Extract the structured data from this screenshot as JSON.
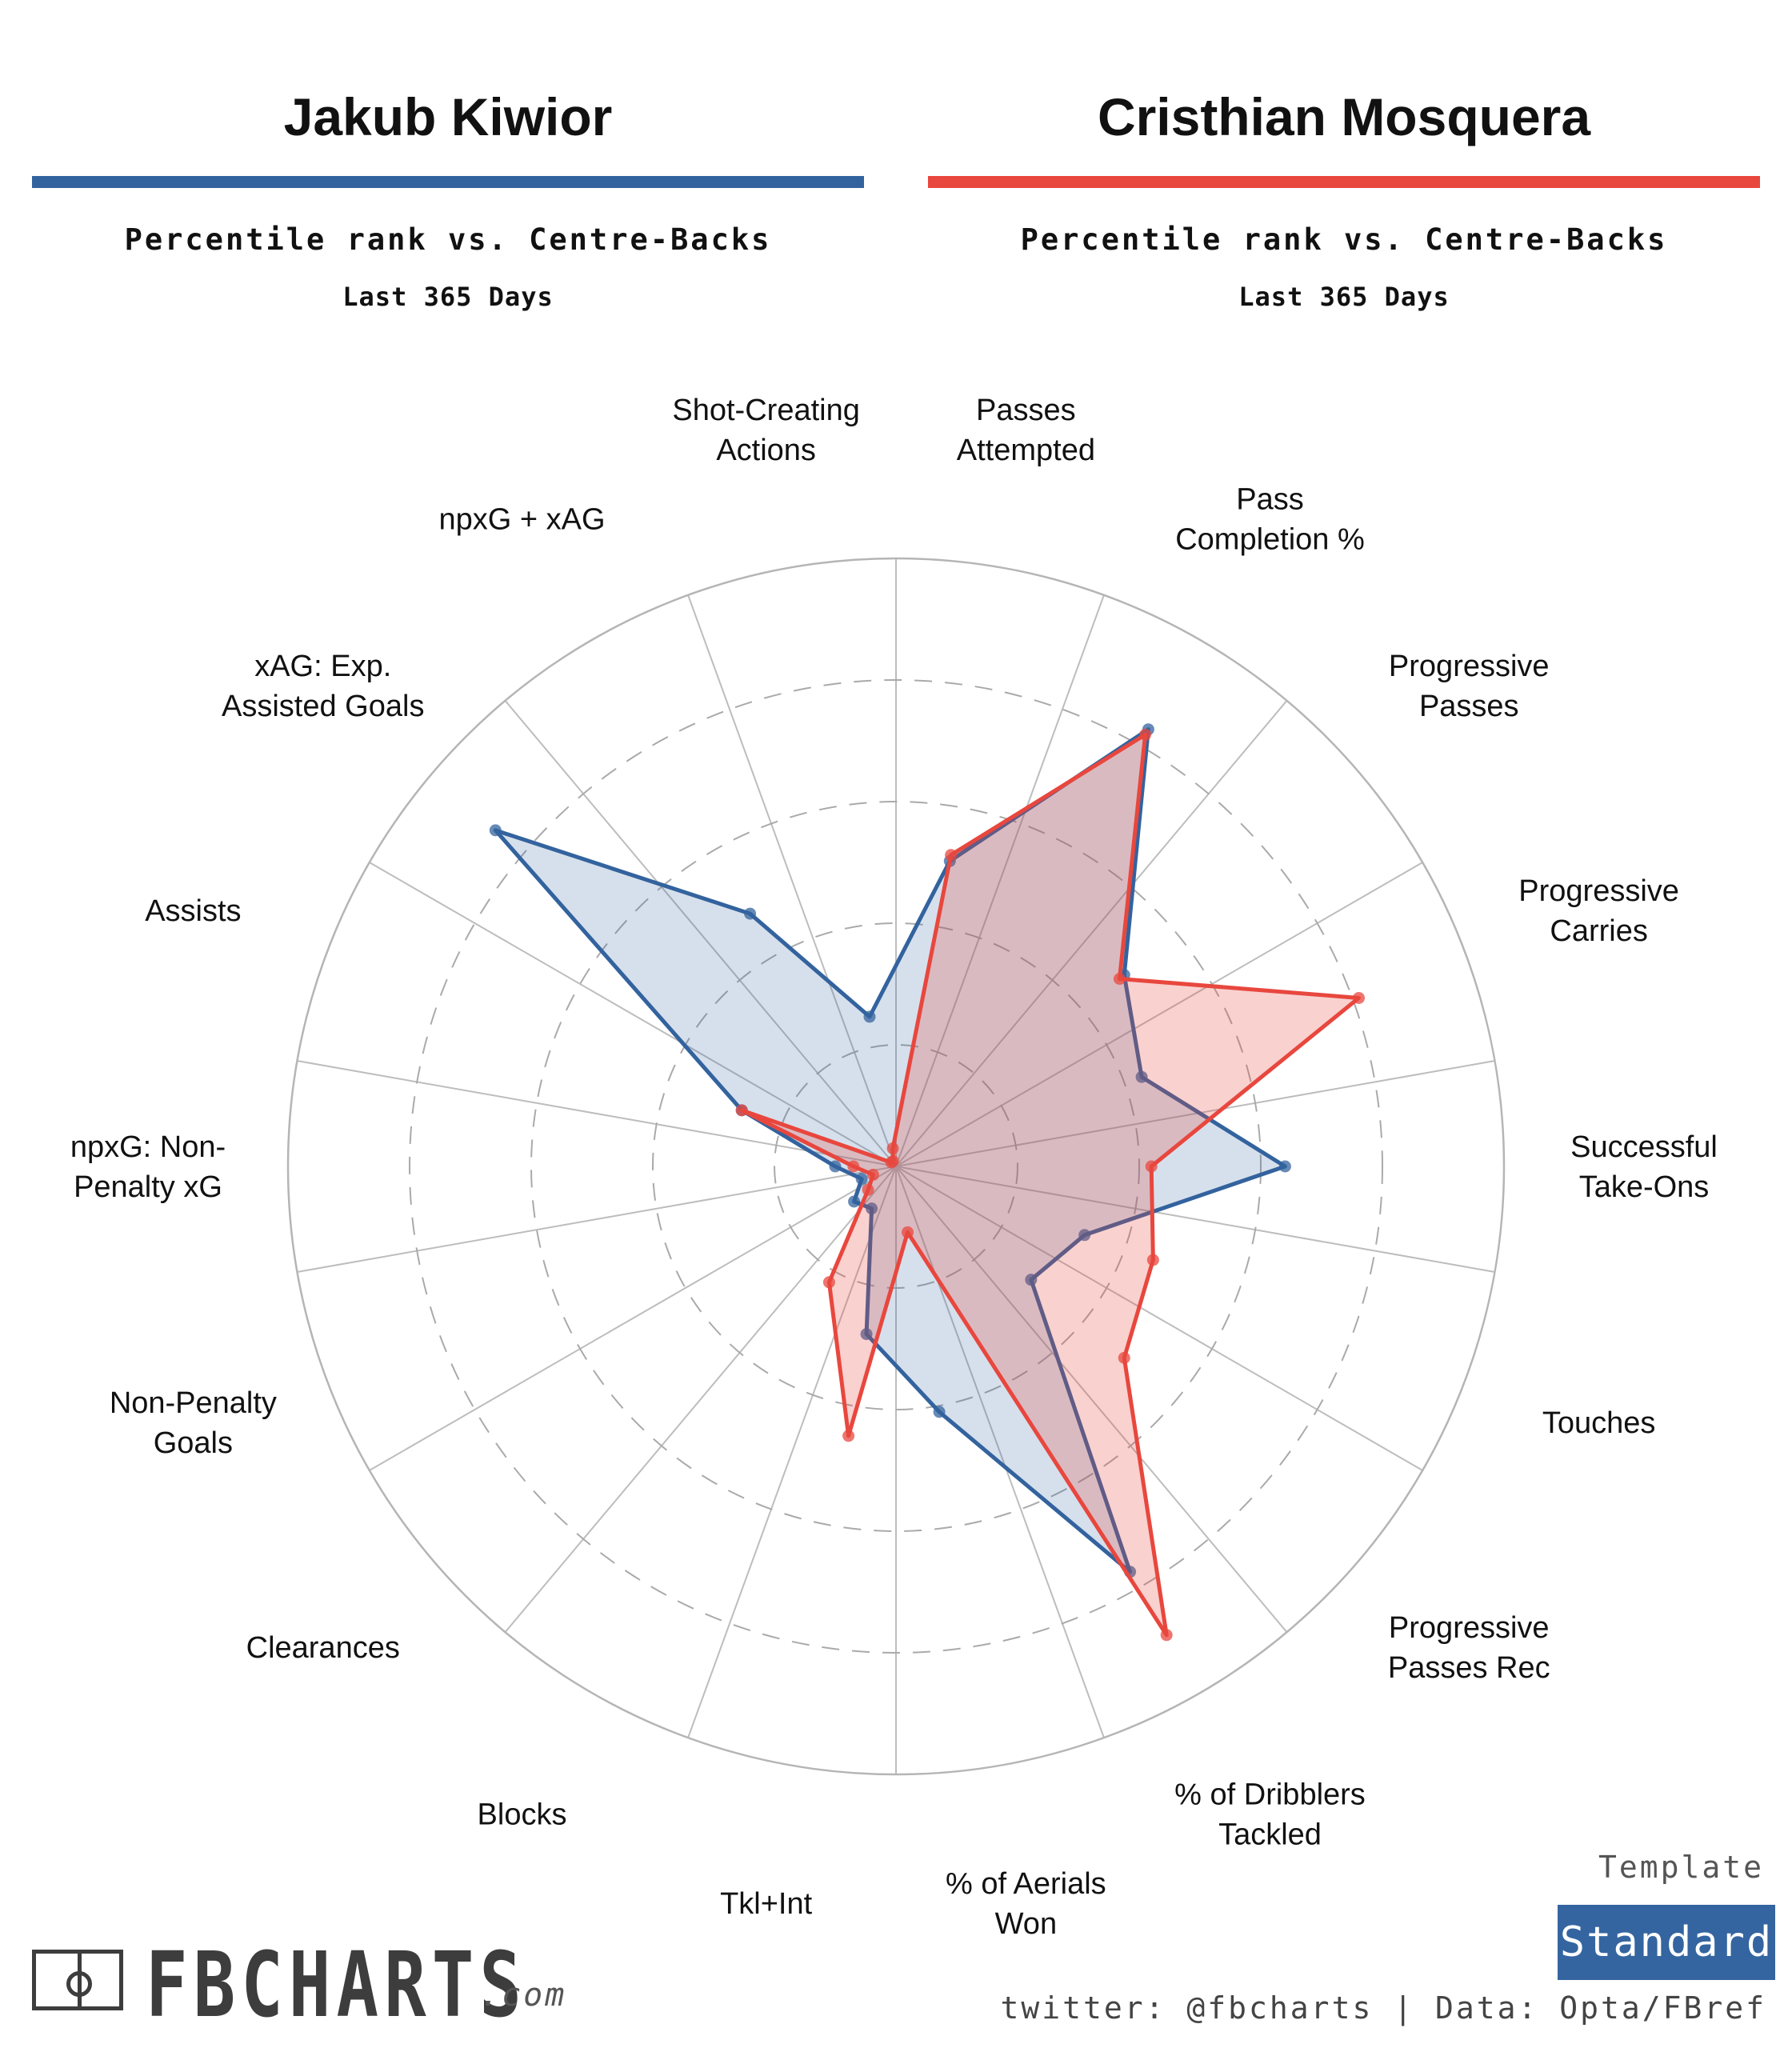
{
  "players": [
    {
      "name": "Jakub Kiwior",
      "color": "#33639e",
      "subtitle": "Percentile rank vs. Centre-Backs",
      "period": "Last 365 Days"
    },
    {
      "name": "Cristhian Mosquera",
      "color": "#e8473e",
      "subtitle": "Percentile rank vs. Centre-Backs",
      "period": "Last 365 Days"
    }
  ],
  "chart_data": {
    "type": "radar",
    "rlim": [
      0,
      100
    ],
    "rings": [
      20,
      40,
      60,
      80,
      100
    ],
    "start_angle_deg": 90,
    "direction": "clockwise",
    "axes": [
      {
        "key": "passes_attempted",
        "label": "Passes\nAttempted"
      },
      {
        "key": "pass_completion",
        "label": "Pass\nCompletion %"
      },
      {
        "key": "progressive_passes",
        "label": "Progressive\nPasses"
      },
      {
        "key": "progressive_carries",
        "label": "Progressive\nCarries"
      },
      {
        "key": "successful_take_ons",
        "label": "Successful\nTake-Ons"
      },
      {
        "key": "touches",
        "label": "Touches"
      },
      {
        "key": "progressive_passes_rec",
        "label": "Progressive\nPasses Rec"
      },
      {
        "key": "dribblers_tackled",
        "label": "% of Dribblers\nTackled"
      },
      {
        "key": "aerials_won",
        "label": "% of Aerials\nWon"
      },
      {
        "key": "tkl_int",
        "label": "Tkl+Int"
      },
      {
        "key": "blocks",
        "label": "Blocks"
      },
      {
        "key": "clearances",
        "label": "Clearances"
      },
      {
        "key": "non_penalty_goals",
        "label": "Non-Penalty\nGoals"
      },
      {
        "key": "npxg",
        "label": "npxG: Non-\nPenalty xG"
      },
      {
        "key": "assists",
        "label": "Assists"
      },
      {
        "key": "xag",
        "label": "xAG: Exp.\nAssisted Goals"
      },
      {
        "key": "npxg_xag",
        "label": "npxG + xAG"
      },
      {
        "key": "shot_creating_actions",
        "label": "Shot-Creating\nActions"
      }
    ],
    "series": [
      {
        "name": "Jakub Kiwior",
        "color": "#33639e",
        "fill": "rgba(51,99,158,0.2)",
        "values": [
          51,
          83,
          49,
          43,
          64,
          33,
          29,
          77,
          41,
          28,
          8,
          9,
          6,
          10,
          27,
          86,
          48,
          25
        ]
      },
      {
        "name": "Cristhian Mosquera",
        "color": "#e8473e",
        "fill": "rgba(232,71,62,0.25)",
        "values": [
          52,
          82,
          48,
          81,
          42,
          45,
          49,
          89,
          11,
          45,
          22,
          6,
          4,
          7,
          27,
          1,
          1,
          3
        ]
      }
    ]
  },
  "footer": {
    "logo_text": "FBCHARTS",
    "logo_suffix": ".com",
    "template_label": "Template",
    "template_value": "Standard",
    "credits": "twitter: @fbcharts | Data: Opta/FBref"
  }
}
